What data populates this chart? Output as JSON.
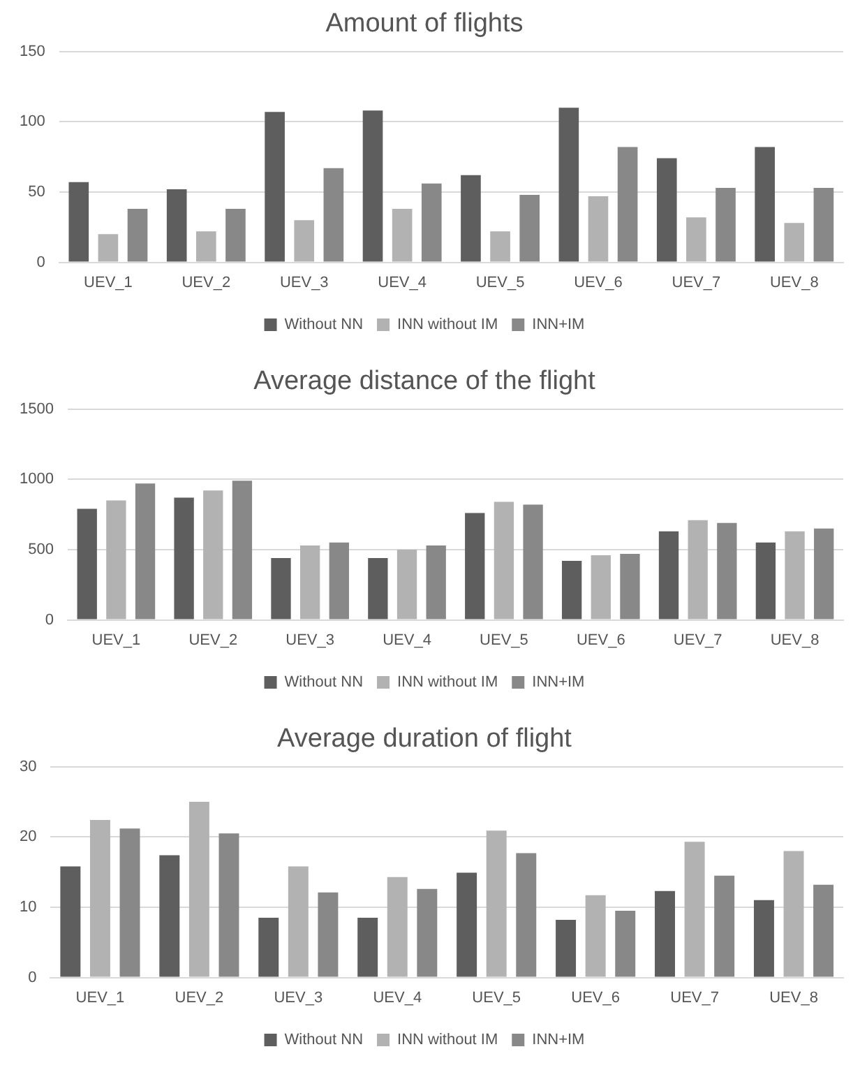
{
  "chart_data": [
    {
      "type": "bar",
      "title": "Amount of flights",
      "categories": [
        "UEV_1",
        "UEV_2",
        "UEV_3",
        "UEV_4",
        "UEV_5",
        "UEV_6",
        "UEV_7",
        "UEV_8"
      ],
      "series": [
        {
          "name": "Without NN",
          "color": "#5e5e5e",
          "values": [
            57,
            52,
            107,
            108,
            62,
            110,
            74,
            82
          ]
        },
        {
          "name": "INN without IM",
          "color": "#b2b2b2",
          "values": [
            20,
            22,
            30,
            38,
            22,
            47,
            32,
            28
          ]
        },
        {
          "name": "INN+IM",
          "color": "#888888",
          "values": [
            38,
            38,
            67,
            56,
            48,
            82,
            53,
            53
          ]
        }
      ],
      "ylim": [
        0,
        150
      ],
      "yticks": [
        0,
        50,
        100,
        150
      ],
      "grid": "y",
      "legend": "bottom"
    },
    {
      "type": "bar",
      "title": "Average distance of the flight",
      "categories": [
        "UEV_1",
        "UEV_2",
        "UEV_3",
        "UEV_4",
        "UEV_5",
        "UEV_6",
        "UEV_7",
        "UEV_8"
      ],
      "series": [
        {
          "name": "Without NN",
          "color": "#5e5e5e",
          "values": [
            790,
            870,
            440,
            440,
            760,
            420,
            630,
            550
          ]
        },
        {
          "name": "INN without IM",
          "color": "#b2b2b2",
          "values": [
            850,
            920,
            530,
            500,
            840,
            460,
            710,
            630
          ]
        },
        {
          "name": "INN+IM",
          "color": "#888888",
          "values": [
            970,
            990,
            550,
            530,
            820,
            470,
            690,
            650
          ]
        }
      ],
      "ylim": [
        0,
        1500
      ],
      "yticks": [
        0,
        500,
        1000,
        1500
      ],
      "grid": "y",
      "legend": "bottom"
    },
    {
      "type": "bar",
      "title": "Average duration of flight",
      "categories": [
        "UEV_1",
        "UEV_2",
        "UEV_3",
        "UEV_4",
        "UEV_5",
        "UEV_6",
        "UEV_7",
        "UEV_8"
      ],
      "series": [
        {
          "name": "Without NN",
          "color": "#5e5e5e",
          "values": [
            15.8,
            17.4,
            8.5,
            8.5,
            14.9,
            8.2,
            12.3,
            11.0
          ]
        },
        {
          "name": "INN without IM",
          "color": "#b2b2b2",
          "values": [
            22.4,
            25.0,
            15.8,
            14.3,
            20.9,
            11.7,
            19.3,
            18.0
          ]
        },
        {
          "name": "INN+IM",
          "color": "#888888",
          "values": [
            21.2,
            20.5,
            12.1,
            12.6,
            17.7,
            9.5,
            14.5,
            13.2
          ]
        }
      ],
      "ylim": [
        0,
        30
      ],
      "yticks": [
        0,
        10,
        20,
        30
      ],
      "grid": "y",
      "legend": "bottom"
    }
  ]
}
